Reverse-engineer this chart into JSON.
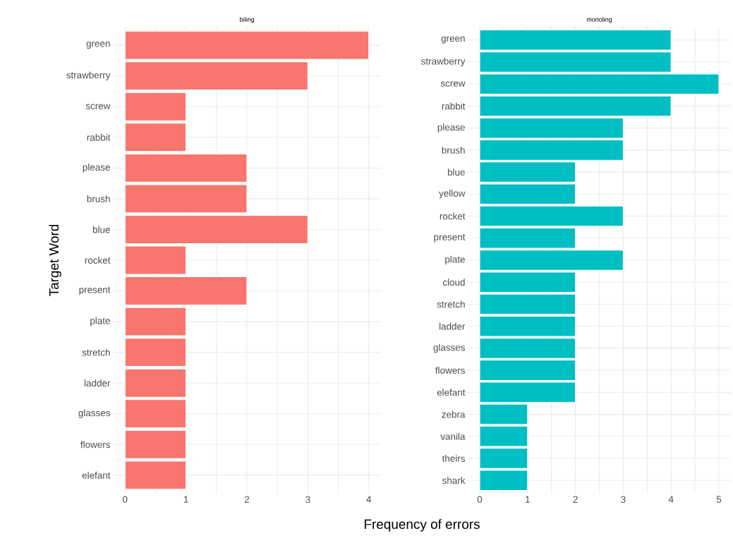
{
  "chart_data": [
    {
      "type": "bar",
      "orientation": "horizontal",
      "title": "biling",
      "xlabel": "Frequency of errors",
      "ylabel": "Target Word",
      "categories": [
        "green",
        "strawberry",
        "screw",
        "rabbit",
        "please",
        "brush",
        "blue",
        "rocket",
        "present",
        "plate",
        "stretch",
        "ladder",
        "glasses",
        "flowers",
        "elefant"
      ],
      "values": [
        4,
        3,
        1,
        1,
        2,
        2,
        3,
        1,
        2,
        1,
        1,
        1,
        1,
        1,
        1
      ],
      "color": "#f8766d",
      "xlim": [
        -0.2,
        4.2
      ],
      "xticks": [
        0,
        {
          "value": 0.5,
          "label": null
        },
        1,
        {
          "value": 1.5,
          "label": null
        },
        2,
        {
          "value": 2.5,
          "label": null
        },
        3,
        {
          "value": 3.5,
          "label": null
        },
        4
      ],
      "grid": true
    },
    {
      "type": "bar",
      "orientation": "horizontal",
      "title": "monoling",
      "categories": [
        "green",
        "strawberry",
        "screw",
        "rabbit",
        "please",
        "brush",
        "blue",
        "yellow",
        "rocket",
        "present",
        "plate",
        "cloud",
        "stretch",
        "ladder",
        "glasses",
        "flowers",
        "elefant",
        "zebra",
        "vanila",
        "theirs",
        "shark"
      ],
      "values": [
        4,
        4,
        5,
        4,
        3,
        3,
        2,
        2,
        3,
        2,
        3,
        2,
        2,
        2,
        2,
        2,
        2,
        1,
        1,
        1,
        1
      ],
      "color": "#00bfc4",
      "xlim": [
        -0.25,
        5.25
      ],
      "xticks": [
        0,
        {
          "value": 0.5,
          "label": null
        },
        1,
        {
          "value": 1.5,
          "label": null
        },
        2,
        {
          "value": 2.5,
          "label": null
        },
        3,
        {
          "value": 3.5,
          "label": null
        },
        4,
        {
          "value": 4.5,
          "label": null
        },
        5
      ],
      "grid": true
    }
  ]
}
